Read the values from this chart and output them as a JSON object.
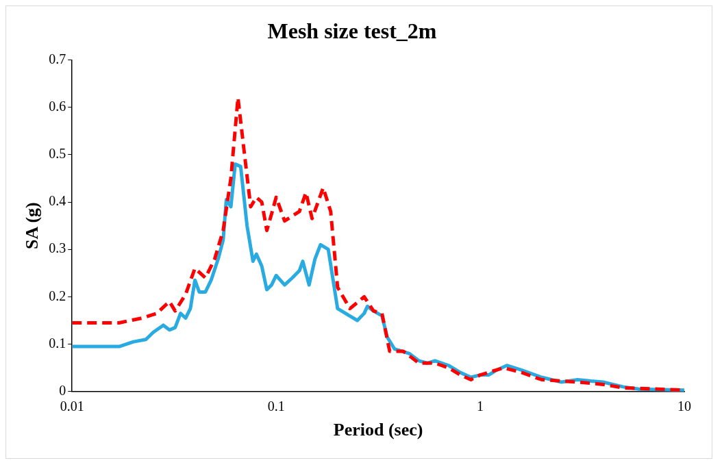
{
  "chart_data": {
    "type": "line",
    "title": "Mesh size test_2m",
    "xlabel": "Period (sec)",
    "ylabel": "SA (g)",
    "log": "x",
    "xlim": [
      0.01,
      10
    ],
    "xticks": [
      0.01,
      0.1,
      1,
      10
    ],
    "ylim": [
      0,
      0.7
    ],
    "yticks": [
      0,
      0.1,
      0.2,
      0.3,
      0.4,
      0.5,
      0.6,
      0.7
    ],
    "grid": false,
    "legend": false,
    "marker": "none",
    "series": [
      {
        "color": "#29abe2",
        "line_style": "solid",
        "x": [
          0.01,
          0.017,
          0.02,
          0.023,
          0.025,
          0.028,
          0.03,
          0.032,
          0.034,
          0.036,
          0.038,
          0.04,
          0.042,
          0.045,
          0.048,
          0.052,
          0.055,
          0.057,
          0.06,
          0.063,
          0.067,
          0.072,
          0.077,
          0.08,
          0.085,
          0.09,
          0.095,
          0.1,
          0.11,
          0.12,
          0.13,
          0.135,
          0.145,
          0.155,
          0.165,
          0.18,
          0.2,
          0.25,
          0.27,
          0.28,
          0.3,
          0.33,
          0.35,
          0.38,
          0.45,
          0.5,
          0.55,
          0.6,
          0.7,
          0.8,
          0.9,
          1.0,
          1.1,
          1.2,
          1.35,
          1.6,
          2,
          2.5,
          3,
          3.5,
          4,
          5,
          6,
          10
        ],
        "values": [
          0.095,
          0.095,
          0.105,
          0.11,
          0.125,
          0.14,
          0.13,
          0.135,
          0.165,
          0.155,
          0.175,
          0.235,
          0.21,
          0.21,
          0.235,
          0.28,
          0.32,
          0.405,
          0.39,
          0.48,
          0.475,
          0.35,
          0.275,
          0.29,
          0.265,
          0.215,
          0.225,
          0.245,
          0.225,
          0.24,
          0.255,
          0.275,
          0.225,
          0.28,
          0.31,
          0.3,
          0.175,
          0.15,
          0.165,
          0.18,
          0.17,
          0.16,
          0.115,
          0.09,
          0.08,
          0.065,
          0.06,
          0.065,
          0.055,
          0.04,
          0.03,
          0.035,
          0.035,
          0.045,
          0.055,
          0.045,
          0.03,
          0.02,
          0.025,
          0.022,
          0.02,
          0.01,
          0.005,
          0.003
        ]
      },
      {
        "color": "#ff0000",
        "line_style": "dashed",
        "x": [
          0.01,
          0.017,
          0.022,
          0.026,
          0.03,
          0.032,
          0.036,
          0.04,
          0.045,
          0.05,
          0.055,
          0.06,
          0.065,
          0.07,
          0.075,
          0.08,
          0.085,
          0.09,
          0.095,
          0.1,
          0.11,
          0.13,
          0.14,
          0.15,
          0.17,
          0.185,
          0.2,
          0.23,
          0.27,
          0.3,
          0.33,
          0.36,
          0.42,
          0.5,
          0.6,
          0.7,
          0.8,
          0.9,
          1.0,
          1.3,
          1.6,
          2,
          3,
          4,
          5,
          10
        ],
        "values": [
          0.145,
          0.145,
          0.155,
          0.165,
          0.19,
          0.17,
          0.205,
          0.26,
          0.24,
          0.28,
          0.34,
          0.45,
          0.62,
          0.5,
          0.39,
          0.41,
          0.4,
          0.34,
          0.375,
          0.41,
          0.36,
          0.38,
          0.42,
          0.365,
          0.43,
          0.38,
          0.22,
          0.175,
          0.2,
          0.17,
          0.165,
          0.085,
          0.085,
          0.06,
          0.06,
          0.05,
          0.035,
          0.025,
          0.035,
          0.05,
          0.04,
          0.025,
          0.02,
          0.015,
          0.008,
          0.003
        ]
      }
    ]
  }
}
